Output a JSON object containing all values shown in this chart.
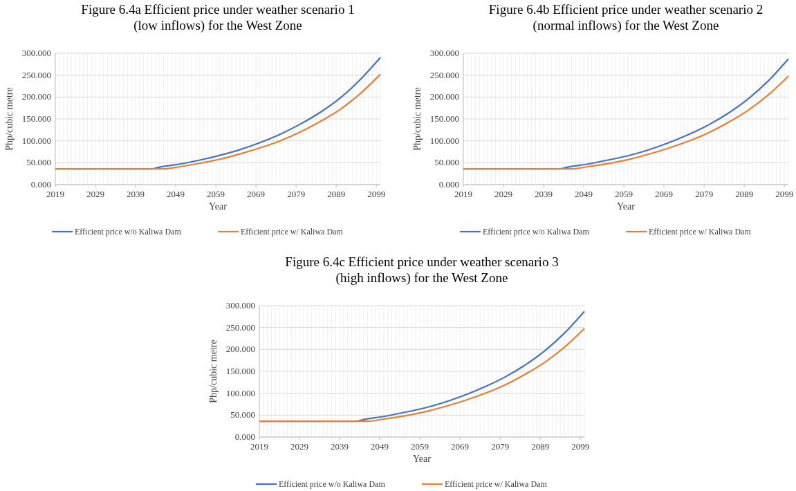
{
  "chart_data": [
    {
      "type": "line",
      "title": "Figure 6.4a Efficient price under weather scenario 1\n(low inflows) for the West Zone",
      "xlabel": "Year",
      "ylabel": "Php/cubic metre",
      "xlim": [
        2019,
        2100
      ],
      "xticks": [
        2019,
        2029,
        2039,
        2049,
        2059,
        2069,
        2079,
        2089,
        2099
      ],
      "ylim": [
        0,
        300
      ],
      "yticks": [
        {
          "value": 0,
          "label": "0.000"
        },
        {
          "value": 50,
          "label": "50.000"
        },
        {
          "value": 100,
          "label": "100.000"
        },
        {
          "value": 150,
          "label": "150.000"
        },
        {
          "value": 200,
          "label": "200.000"
        },
        {
          "value": 250,
          "label": "250.000"
        },
        {
          "value": 300,
          "label": "300.000"
        }
      ],
      "grid": true,
      "legend": "bottom",
      "marker": "none",
      "line_style": "solid",
      "series": [
        {
          "name": "Efficient price w/o Kaliwa Dam",
          "color": "#4472c4",
          "x": [
            2019,
            2043,
            2045,
            2050,
            2055,
            2060,
            2065,
            2070,
            2075,
            2080,
            2085,
            2090,
            2095,
            2100
          ],
          "values": [
            36,
            36,
            40,
            47,
            56,
            67,
            80,
            96,
            115,
            138,
            165,
            198,
            240,
            290
          ]
        },
        {
          "name": "Efficient price w/ Kaliwa Dam",
          "color": "#ed7d31",
          "x": [
            2019,
            2046,
            2050,
            2055,
            2060,
            2065,
            2070,
            2075,
            2080,
            2085,
            2090,
            2095,
            2100
          ],
          "values": [
            36,
            36,
            41,
            49,
            58,
            70,
            84,
            100,
            120,
            144,
            172,
            208,
            252
          ]
        }
      ]
    },
    {
      "type": "line",
      "title": "Figure 6.4b Efficient price under weather scenario 2\n(normal inflows) for the West Zone",
      "xlabel": "Year",
      "ylabel": "Php/cubic metre",
      "xlim": [
        2019,
        2100
      ],
      "xticks": [
        2019,
        2029,
        2039,
        2049,
        2059,
        2069,
        2079,
        2089,
        2099
      ],
      "ylim": [
        0,
        300
      ],
      "yticks": [
        {
          "value": 0,
          "label": "0.000"
        },
        {
          "value": 50,
          "label": "50.000"
        },
        {
          "value": 100,
          "label": "100.000"
        },
        {
          "value": 150,
          "label": "150.000"
        },
        {
          "value": 200,
          "label": "200.000"
        },
        {
          "value": 250,
          "label": "250.000"
        },
        {
          "value": 300,
          "label": "300.000"
        }
      ],
      "grid": true,
      "legend": "bottom",
      "marker": "none",
      "line_style": "solid",
      "series": [
        {
          "name": "Efficient price w/o Kaliwa Dam",
          "color": "#4472c4",
          "x": [
            2019,
            2043,
            2045,
            2050,
            2055,
            2060,
            2065,
            2070,
            2075,
            2080,
            2085,
            2090,
            2095,
            2100
          ],
          "values": [
            36,
            36,
            40,
            47,
            56,
            66,
            79,
            95,
            114,
            136,
            163,
            196,
            237,
            287
          ]
        },
        {
          "name": "Efficient price w/ Kaliwa Dam",
          "color": "#ed7d31",
          "x": [
            2019,
            2046,
            2050,
            2055,
            2060,
            2065,
            2070,
            2075,
            2080,
            2085,
            2090,
            2095,
            2100
          ],
          "values": [
            36,
            36,
            41,
            48,
            57,
            69,
            83,
            99,
            118,
            142,
            170,
            205,
            248
          ]
        }
      ]
    },
    {
      "type": "line",
      "title": "Figure 6.4c Efficient price under weather scenario 3\n(high inflows) for the West Zone",
      "xlabel": "Year",
      "ylabel": "Php/cubic metre",
      "xlim": [
        2019,
        2100
      ],
      "xticks": [
        2019,
        2029,
        2039,
        2049,
        2059,
        2069,
        2079,
        2089,
        2099
      ],
      "ylim": [
        0,
        300
      ],
      "yticks": [
        {
          "value": 0,
          "label": "0.000"
        },
        {
          "value": 50,
          "label": "50.000"
        },
        {
          "value": 100,
          "label": "100.000"
        },
        {
          "value": 150,
          "label": "150.000"
        },
        {
          "value": 200,
          "label": "200.000"
        },
        {
          "value": 250,
          "label": "250.000"
        },
        {
          "value": 300,
          "label": "300.000"
        }
      ],
      "grid": true,
      "legend": "bottom",
      "marker": "none",
      "line_style": "solid",
      "series": [
        {
          "name": "Efficient price w/o Kaliwa Dam",
          "color": "#4472c4",
          "x": [
            2019,
            2043,
            2045,
            2050,
            2055,
            2060,
            2065,
            2070,
            2075,
            2080,
            2085,
            2090,
            2095,
            2100
          ],
          "values": [
            36,
            36,
            40,
            47,
            56,
            66,
            79,
            95,
            114,
            136,
            163,
            196,
            237,
            287
          ]
        },
        {
          "name": "Efficient price w/ Kaliwa Dam",
          "color": "#ed7d31",
          "x": [
            2019,
            2046,
            2050,
            2055,
            2060,
            2065,
            2070,
            2075,
            2080,
            2085,
            2090,
            2095,
            2100
          ],
          "values": [
            36,
            36,
            41,
            48,
            57,
            69,
            83,
            99,
            118,
            142,
            170,
            205,
            248
          ]
        }
      ]
    }
  ]
}
